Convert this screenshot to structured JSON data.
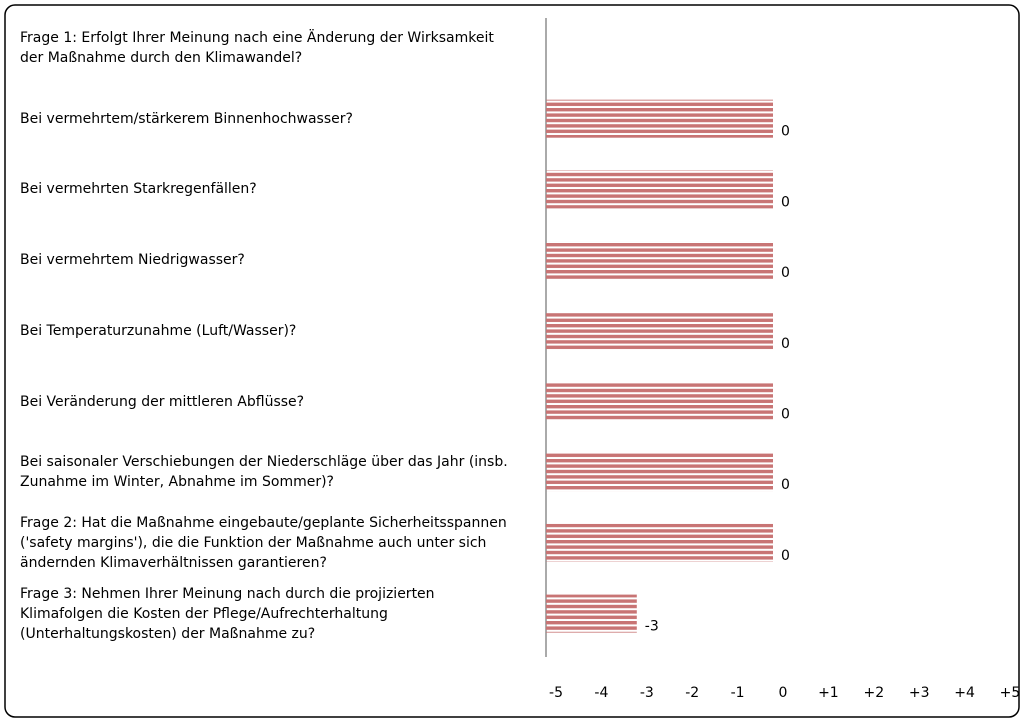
{
  "chart_data": {
    "type": "bar",
    "orientation": "horizontal",
    "categories": [
      "Frage 1: Erfolgt Ihrer Meinung nach eine Änderung der Wirksamkeit der Maßnahme durch den Klimawandel?",
      "Bei vermehrtem/stärkerem Binnenhochwasser?",
      "Bei vermehrten Starkregenfällen?",
      "Bei vermehrtem Niedrigwasser?",
      "Bei Temperaturzunahme (Luft/Wasser)?",
      "Bei Veränderung der mittleren Abflüsse?",
      "Bei saisonaler Verschiebungen der Niederschläge über das Jahr (insb. Zunahme im Winter, Abnahme im Sommer)?",
      "Frage 2: Hat die Maßnahme eingebaute/geplante Sicherheitsspannen ('safety margins'), die die Funktion der Maßnahme auch unter sich ändernden Klimaverhältnissen garantieren?",
      "Frage 3: Nehmen Ihrer Meinung nach durch die projizierten Klimafolgen die Kosten der Pflege/Aufrechterhaltung (Unterhaltungskosten) der Maßnahme zu?"
    ],
    "values": [
      null,
      0,
      0,
      0,
      0,
      0,
      0,
      0,
      -3
    ],
    "color": "#c87474",
    "xlim": [
      -5,
      5
    ],
    "xticks": [
      -5,
      -4,
      -3,
      -2,
      -1,
      0,
      {
        "value": 1,
        "label": "+1"
      },
      {
        "value": 2,
        "label": "+2"
      },
      {
        "value": 3,
        "label": "+3"
      },
      {
        "value": 4,
        "label": "+4"
      },
      {
        "value": 5,
        "label": "+5"
      }
    ]
  }
}
